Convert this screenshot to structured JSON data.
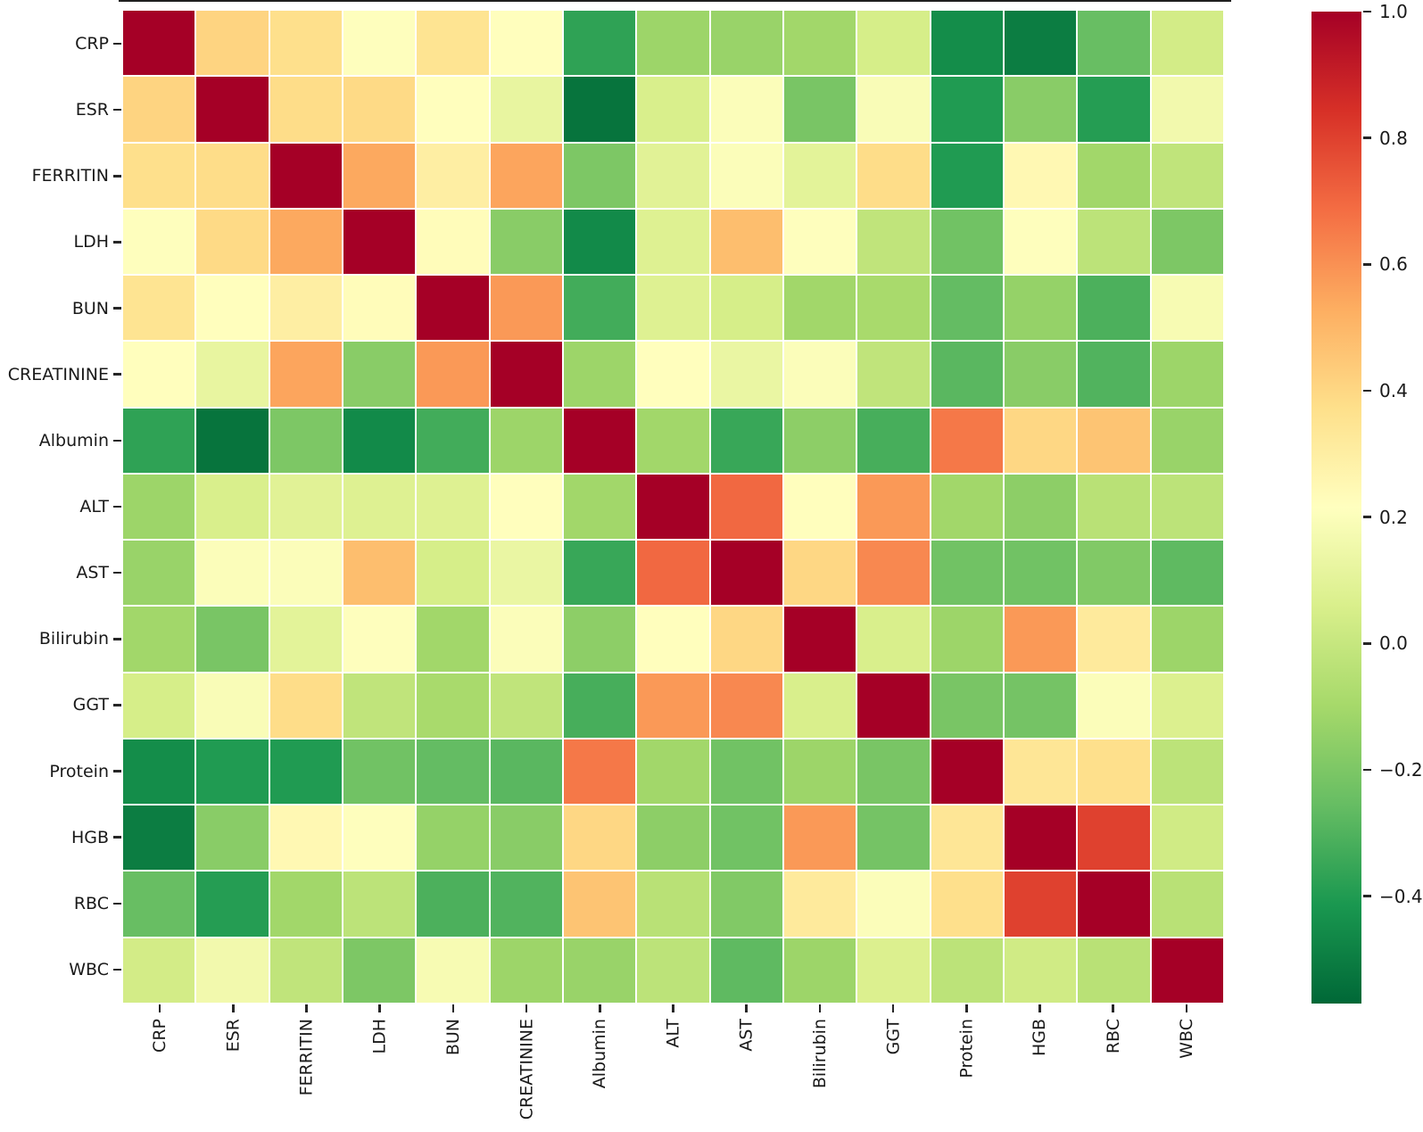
{
  "figure": {
    "background_color": "#ffffff",
    "tick_color": "#262626",
    "label_color": "#1a1a1a"
  },
  "chart_data": {
    "type": "heatmap",
    "title": "",
    "xlabel": "",
    "ylabel": "",
    "labels": [
      "CRP",
      "ESR",
      "FERRITIN",
      "LDH",
      "BUN",
      "CREATININE",
      "Albumin",
      "ALT",
      "AST",
      "Bilirubin",
      "GGT",
      "Protein",
      "HGB",
      "RBC",
      "WBC"
    ],
    "matrix": [
      [
        1.0,
        0.41,
        0.37,
        0.21,
        0.35,
        0.22,
        -0.37,
        -0.12,
        -0.13,
        -0.11,
        0.05,
        -0.45,
        -0.5,
        -0.25,
        0.04
      ],
      [
        0.41,
        1.0,
        0.38,
        0.39,
        0.22,
        0.12,
        -0.53,
        0.06,
        0.2,
        -0.21,
        0.19,
        -0.4,
        -0.17,
        -0.39,
        0.16
      ],
      [
        0.37,
        0.38,
        1.0,
        0.54,
        0.3,
        0.55,
        -0.2,
        0.09,
        0.2,
        0.1,
        0.38,
        -0.4,
        0.25,
        -0.11,
        -0.02
      ],
      [
        0.21,
        0.39,
        0.54,
        1.0,
        0.23,
        -0.17,
        -0.46,
        0.08,
        0.48,
        0.21,
        -0.02,
        -0.23,
        0.21,
        -0.03,
        -0.2
      ],
      [
        0.35,
        0.22,
        0.3,
        0.23,
        1.0,
        0.58,
        -0.33,
        0.08,
        0.05,
        -0.11,
        -0.09,
        -0.26,
        -0.14,
        -0.31,
        0.18
      ],
      [
        0.22,
        0.12,
        0.55,
        -0.17,
        0.58,
        1.0,
        -0.12,
        0.22,
        0.13,
        0.2,
        -0.02,
        -0.28,
        -0.17,
        -0.3,
        -0.12
      ],
      [
        -0.37,
        -0.53,
        -0.2,
        -0.46,
        -0.33,
        -0.12,
        1.0,
        -0.11,
        -0.35,
        -0.16,
        -0.32,
        0.66,
        0.4,
        0.46,
        -0.13
      ],
      [
        -0.12,
        0.06,
        0.09,
        0.08,
        0.08,
        0.22,
        -0.11,
        1.0,
        0.7,
        0.22,
        0.58,
        -0.11,
        -0.16,
        -0.04,
        -0.03
      ],
      [
        -0.13,
        0.2,
        0.2,
        0.48,
        0.05,
        0.13,
        -0.35,
        0.7,
        1.0,
        0.4,
        0.62,
        -0.23,
        -0.23,
        -0.19,
        -0.27
      ],
      [
        -0.11,
        -0.21,
        0.1,
        0.21,
        -0.11,
        0.2,
        -0.16,
        0.22,
        0.4,
        1.0,
        0.06,
        -0.12,
        0.58,
        0.32,
        -0.12
      ],
      [
        0.05,
        0.19,
        0.38,
        -0.02,
        -0.09,
        -0.02,
        -0.32,
        0.58,
        0.62,
        0.06,
        1.0,
        -0.21,
        -0.22,
        0.2,
        0.07
      ],
      [
        -0.45,
        -0.4,
        -0.4,
        -0.23,
        -0.26,
        -0.28,
        0.66,
        -0.11,
        -0.23,
        -0.12,
        -0.21,
        1.0,
        0.34,
        0.37,
        -0.03
      ],
      [
        -0.5,
        -0.17,
        0.25,
        0.21,
        -0.14,
        -0.17,
        0.4,
        -0.16,
        -0.23,
        0.58,
        -0.22,
        0.34,
        1.0,
        0.8,
        0.03
      ],
      [
        -0.25,
        -0.39,
        -0.11,
        -0.03,
        -0.31,
        -0.3,
        0.46,
        -0.04,
        -0.19,
        0.32,
        0.2,
        0.37,
        0.8,
        1.0,
        -0.04
      ],
      [
        0.04,
        0.16,
        -0.02,
        -0.2,
        0.18,
        -0.12,
        -0.13,
        -0.03,
        -0.27,
        -0.12,
        0.07,
        -0.03,
        0.03,
        -0.04,
        1.0
      ]
    ],
    "colormap": "RdYlGn_r",
    "colormap_anchors": [
      "#006837",
      "#1a9850",
      "#66bd63",
      "#a6d96a",
      "#d9ef8b",
      "#ffffbf",
      "#fee08b",
      "#fdae61",
      "#f46d43",
      "#d73027",
      "#a50026"
    ],
    "vmin": -0.57,
    "vmax": 1.0,
    "grid_line_color": "#ffffff",
    "legend_position": "right",
    "colorbar_ticks": [
      {
        "label": "1.0",
        "value": 1.0
      },
      {
        "label": "0.8",
        "value": 0.8
      },
      {
        "label": "0.6",
        "value": 0.6
      },
      {
        "label": "0.4",
        "value": 0.4
      },
      {
        "label": "0.2",
        "value": 0.2
      },
      {
        "label": "0.0",
        "value": 0.0
      },
      {
        "label": "−0.2",
        "value": -0.2
      },
      {
        "label": "−0.4",
        "value": -0.4
      }
    ]
  }
}
